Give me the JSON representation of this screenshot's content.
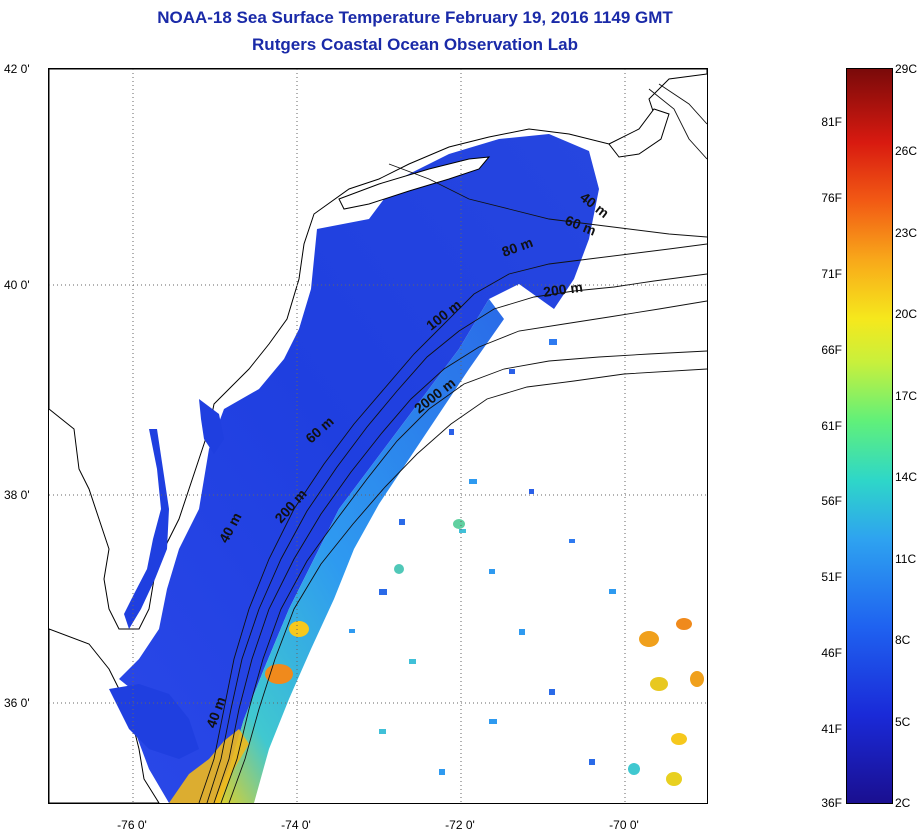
{
  "title": {
    "line1": "NOAA-18 Sea Surface Temperature February 19, 2016 1149 GMT",
    "line2": "Rutgers Coastal Ocean Observation Lab"
  },
  "map": {
    "lat_labels": [
      "42 0'",
      "40 0'",
      "38 0'",
      "36 0'"
    ],
    "lon_labels": [
      "-76 0'",
      "-74 0'",
      "-72 0'",
      "-70 0'"
    ],
    "contour_labels": [
      "40 m",
      "60 m",
      "80 m",
      "200 m",
      "100 m",
      "2000 m",
      "60 m",
      "200 m",
      "40 m",
      "40 m"
    ],
    "colors": {
      "cold_water": "#1f3fe0",
      "mid_water": "#2e9af0",
      "warm_water": "#e8d020",
      "hot_water": "#f08a1c",
      "land": "#ffffff",
      "coastline": "#000000"
    }
  },
  "colorbar": {
    "fahrenheit_labels": [
      "81F",
      "76F",
      "71F",
      "66F",
      "61F",
      "56F",
      "51F",
      "46F",
      "41F",
      "36F"
    ],
    "celsius_labels": [
      "29C",
      "26C",
      "23C",
      "20C",
      "17C",
      "14C",
      "11C",
      "8C",
      "5C",
      "2C"
    ]
  }
}
